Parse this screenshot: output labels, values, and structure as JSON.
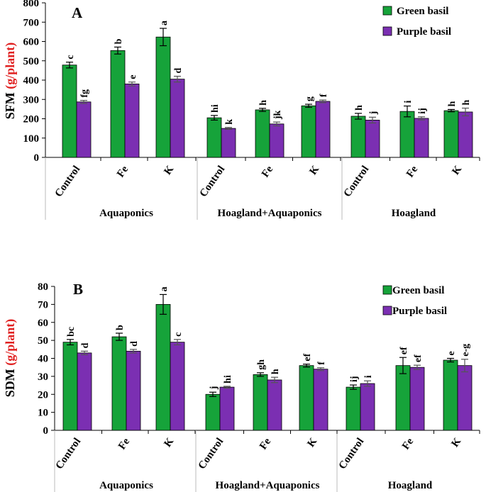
{
  "colors": {
    "green": "#16a33a",
    "purple": "#7b2fb2",
    "axis": "#000000",
    "ylabel_red": "#e02020"
  },
  "chart_data": [
    {
      "type": "bar",
      "panel_letter": "A",
      "ylabel_prefix": "SFM ",
      "ylabel_unit": "(g/plant)",
      "ylim": [
        0,
        800
      ],
      "yticks": [
        "0",
        "100",
        "200",
        "300",
        "400",
        "500",
        "600",
        "700",
        "800"
      ],
      "yticks_values": [
        0,
        100,
        200,
        300,
        400,
        500,
        600,
        700,
        800
      ],
      "legend_position": "top-right",
      "categories": [
        "Control",
        "Fe",
        "K",
        "Control",
        "Fe",
        "K",
        "Control",
        "Fe",
        "K"
      ],
      "groups": [
        "Aquaponics",
        "Hoagland+Aquaponics",
        "Hoagland"
      ],
      "series": [
        {
          "name": "Green basil",
          "values": [
            478,
            553,
            623,
            205,
            246,
            267,
            213,
            238,
            242
          ],
          "errors": [
            15,
            18,
            45,
            12,
            8,
            8,
            15,
            28,
            6
          ],
          "letters": [
            "c",
            "b",
            "a",
            "hi",
            "h",
            "g",
            "h",
            "i",
            "h"
          ]
        },
        {
          "name": "Purple basil",
          "values": [
            287,
            380,
            405,
            150,
            173,
            290,
            193,
            202,
            235
          ],
          "errors": [
            8,
            10,
            15,
            5,
            10,
            7,
            15,
            8,
            20
          ],
          "letters": [
            "fg",
            "e",
            "d",
            "k",
            "jk",
            "f",
            "j",
            "ij",
            "h"
          ]
        }
      ]
    },
    {
      "type": "bar",
      "panel_letter": "B",
      "ylabel_prefix": "SDM ",
      "ylabel_unit": "(g/plant)",
      "ylim": [
        0,
        80
      ],
      "yticks": [
        "0",
        "10",
        "20",
        "30",
        "40",
        "50",
        "60",
        "70",
        "80"
      ],
      "yticks_values": [
        0,
        10,
        20,
        30,
        40,
        50,
        60,
        70,
        80
      ],
      "legend_position": "top-right",
      "categories": [
        "Control",
        "Fe",
        "K",
        "Control",
        "Fe",
        "K",
        "Control",
        "Fe",
        "K"
      ],
      "groups": [
        "Aquaponics",
        "Hoagland+Aquaponics",
        "Hoagland"
      ],
      "series": [
        {
          "name": "Green basil",
          "values": [
            49,
            52,
            70,
            20,
            31,
            36,
            24,
            36,
            39
          ],
          "errors": [
            1.5,
            2,
            5.5,
            1.2,
            1,
            0.8,
            1.2,
            4.5,
            1
          ],
          "letters": [
            "bc",
            "b",
            "a",
            "j",
            "gh",
            "ef",
            "ij",
            "ef",
            "e"
          ]
        },
        {
          "name": "Purple basil",
          "values": [
            43,
            44,
            49,
            24,
            28,
            34,
            26,
            35,
            36
          ],
          "errors": [
            1,
            1,
            1.5,
            0.5,
            1.5,
            0.8,
            1.5,
            1.2,
            3.5
          ],
          "letters": [
            "d",
            "d",
            "c",
            "hi",
            "h",
            "f",
            "i",
            "ef",
            "e-g"
          ]
        }
      ]
    }
  ]
}
